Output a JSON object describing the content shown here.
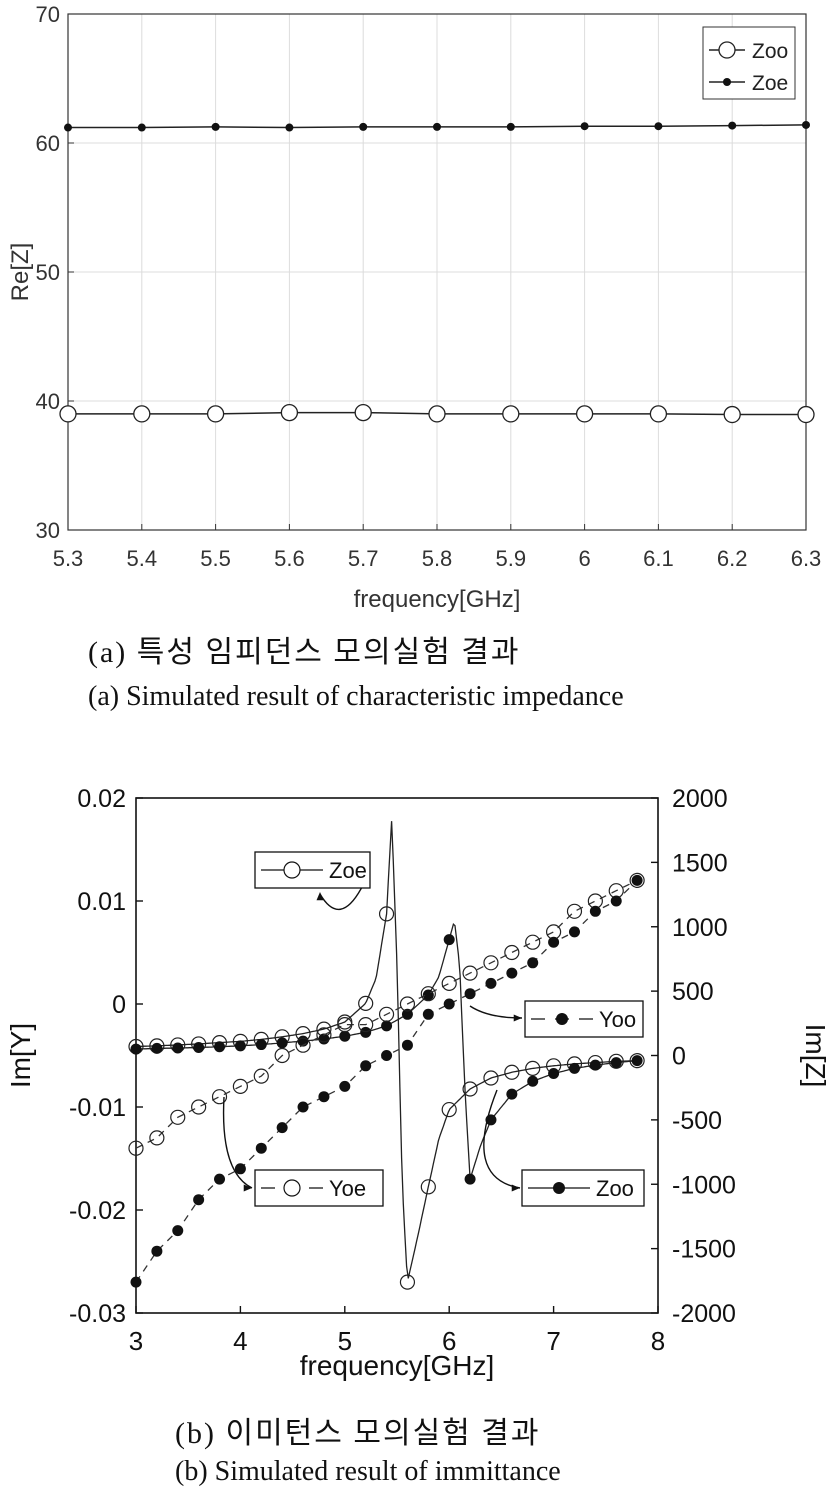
{
  "captions": {
    "a_ko": "(a) 특성 임피던스 모의실험 결과",
    "a_en": "(a) Simulated result of characteristic impedance",
    "b_ko": "(b) 이미턴스 모의실험 결과",
    "b_en": "(b) Simulated result of immittance"
  },
  "chart_data": [
    {
      "type": "line",
      "xlabel": "frequency[GHz]",
      "ylabel": "Re[Z]",
      "xlim": [
        5.3,
        6.3
      ],
      "ylim": [
        30,
        70
      ],
      "x_ticks": [
        "5.3",
        "5.4",
        "5.5",
        "5.6",
        "5.7",
        "5.8",
        "5.9",
        "6",
        "6.1",
        "6.2",
        "6.3"
      ],
      "y_ticks": [
        "30",
        "40",
        "50",
        "60",
        "70"
      ],
      "grid": true,
      "legend_placement": "top-right",
      "x": [
        5.3,
        5.4,
        5.5,
        5.6,
        5.7,
        5.8,
        5.9,
        6.0,
        6.1,
        6.2,
        6.3
      ],
      "series": [
        {
          "name": "Zoo",
          "marker": "open-circle",
          "values": [
            39.0,
            39.0,
            39.0,
            39.1,
            39.1,
            39.0,
            39.0,
            39.0,
            39.0,
            38.95,
            38.95
          ]
        },
        {
          "name": "Zoe",
          "marker": "filled-circle",
          "values": [
            61.2,
            61.2,
            61.25,
            61.2,
            61.25,
            61.25,
            61.25,
            61.3,
            61.3,
            61.35,
            61.4
          ]
        }
      ]
    },
    {
      "type": "line",
      "xlabel": "frequency[GHz]",
      "ylabel_left": "Im[Y]",
      "ylabel_right": "Im[Z]",
      "xlim": [
        3,
        8
      ],
      "ylim_left": [
        -0.03,
        0.02
      ],
      "ylim_right": [
        -2000,
        2000
      ],
      "x_ticks": [
        "3",
        "4",
        "5",
        "6",
        "7",
        "8"
      ],
      "y_ticks_left": [
        "-0.03",
        "-0.02",
        "-0.01",
        "0",
        "0.01",
        "0.02"
      ],
      "y_ticks_right": [
        "-2000",
        "-1500",
        "-1000",
        "-500",
        "0",
        "500",
        "1000",
        "1500",
        "2000"
      ],
      "grid": false,
      "series": [
        {
          "name": "Zoe",
          "axis": "right",
          "style": "solid-line-open-circles",
          "x": [
            3.0,
            3.2,
            3.4,
            3.6,
            3.8,
            4.0,
            4.2,
            4.4,
            4.6,
            4.8,
            5.0,
            5.2,
            5.3,
            5.4,
            5.45,
            5.5,
            5.55,
            5.6,
            5.7,
            5.8,
            5.9,
            6.0,
            6.2,
            6.4,
            6.6,
            6.8,
            7.0,
            7.2,
            7.4,
            7.6,
            7.8
          ],
          "values": [
            70,
            75,
            82,
            90,
            100,
            110,
            125,
            145,
            170,
            205,
            260,
            405,
            600,
            1100,
            1850,
            700,
            -1000,
            -1760,
            -1400,
            -1020,
            -650,
            -420,
            -260,
            -175,
            -130,
            -100,
            -80,
            -65,
            -55,
            -45,
            -40
          ],
          "marked_x": [
            3.0,
            3.2,
            3.4,
            3.6,
            3.8,
            4.0,
            4.2,
            4.4,
            4.6,
            4.8,
            5.0,
            5.2,
            5.4,
            5.6,
            5.8,
            6.0,
            6.2,
            6.4,
            6.6,
            6.8,
            7.0,
            7.2,
            7.4,
            7.6,
            7.8
          ]
        },
        {
          "name": "Zoo",
          "axis": "right",
          "style": "solid-line-filled-circles",
          "x": [
            3.0,
            3.2,
            3.4,
            3.6,
            3.8,
            4.0,
            4.2,
            4.4,
            4.6,
            4.8,
            5.0,
            5.2,
            5.4,
            5.6,
            5.8,
            5.9,
            6.0,
            6.05,
            6.1,
            6.15,
            6.2,
            6.3,
            6.4,
            6.6,
            6.8,
            7.0,
            7.2,
            7.4,
            7.6,
            7.8
          ],
          "values": [
            50,
            55,
            58,
            62,
            68,
            75,
            85,
            98,
            112,
            128,
            150,
            180,
            230,
            320,
            470,
            610,
            900,
            1050,
            700,
            -250,
            -960,
            -700,
            -500,
            -300,
            -200,
            -140,
            -100,
            -75,
            -55,
            -40
          ],
          "marked_x": [
            3.0,
            3.2,
            3.4,
            3.6,
            3.8,
            4.0,
            4.2,
            4.4,
            4.6,
            4.8,
            5.0,
            5.2,
            5.4,
            5.6,
            5.8,
            6.0,
            6.2,
            6.4,
            6.6,
            6.8,
            7.0,
            7.2,
            7.4,
            7.6,
            7.8
          ]
        },
        {
          "name": "Yoe",
          "axis": "left",
          "style": "dashed-open-circles",
          "x": [
            3.0,
            3.2,
            3.4,
            3.6,
            3.8,
            4.0,
            4.2,
            4.4,
            4.6,
            4.8,
            5.0,
            5.2,
            5.4,
            5.6,
            5.8,
            6.0,
            6.2,
            6.4,
            6.6,
            6.8,
            7.0,
            7.2,
            7.4,
            7.6,
            7.8
          ],
          "values": [
            -0.014,
            -0.013,
            -0.011,
            -0.01,
            -0.009,
            -0.008,
            -0.007,
            -0.005,
            -0.004,
            -0.003,
            -0.002,
            -0.002,
            -0.001,
            0.0,
            0.001,
            0.002,
            0.003,
            0.004,
            0.005,
            0.006,
            0.007,
            0.009,
            0.01,
            0.011,
            0.012
          ]
        },
        {
          "name": "Yoo",
          "axis": "left",
          "style": "dashed-filled-circles",
          "x": [
            3.0,
            3.2,
            3.4,
            3.6,
            3.8,
            4.0,
            4.2,
            4.4,
            4.6,
            4.8,
            5.0,
            5.2,
            5.4,
            5.6,
            5.8,
            6.0,
            6.2,
            6.4,
            6.6,
            6.8,
            7.0,
            7.2,
            7.4,
            7.6,
            7.8
          ],
          "values": [
            -0.027,
            -0.024,
            -0.022,
            -0.019,
            -0.017,
            -0.016,
            -0.014,
            -0.012,
            -0.01,
            -0.009,
            -0.008,
            -0.006,
            -0.005,
            -0.004,
            -0.001,
            0.0,
            0.001,
            0.002,
            0.003,
            0.004,
            0.006,
            0.007,
            0.009,
            0.01,
            0.012
          ]
        }
      ],
      "annotations": [
        "Zoe",
        "Yoo",
        "Yoe",
        "Zoo"
      ]
    }
  ]
}
